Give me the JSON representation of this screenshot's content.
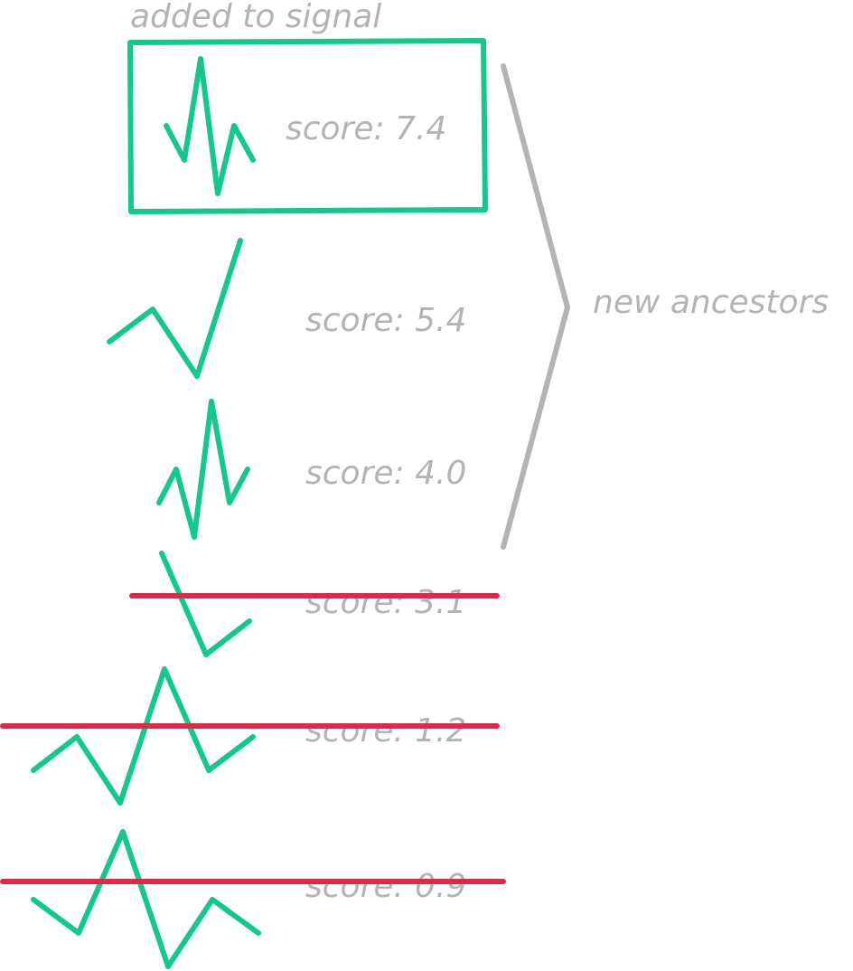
{
  "header": {
    "caption": "added to signal"
  },
  "bracket": {
    "label": "new ancestors"
  },
  "colors": {
    "signal_green": "#13c98a",
    "strike_red": "#e0294a",
    "label_gray": "#b3b3b3",
    "bracket_gray": "#b3b3b3"
  },
  "items": [
    {
      "score_text": "score: 7.4",
      "status": "added",
      "signal_icon": "waveform-icon"
    },
    {
      "score_text": "score: 5.4",
      "status": "kept",
      "signal_icon": "waveform-icon"
    },
    {
      "score_text": "score: 4.0",
      "status": "kept",
      "signal_icon": "waveform-icon"
    },
    {
      "score_text": "score: 3.1",
      "status": "rejected",
      "signal_icon": "waveform-icon"
    },
    {
      "score_text": "score: 1.2",
      "status": "rejected",
      "signal_icon": "waveform-icon"
    },
    {
      "score_text": "score: 0.9",
      "status": "rejected",
      "signal_icon": "waveform-icon"
    }
  ]
}
